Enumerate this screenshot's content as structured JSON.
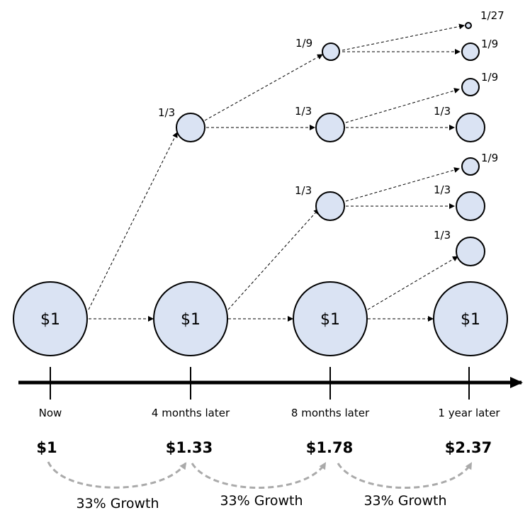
{
  "colors": {
    "circle_fill": "#dae3f3",
    "circle_stroke": "#000000",
    "axis": "#000000",
    "growth_arc": "#aaaaaa"
  },
  "nodes": {
    "now": "$1",
    "month4": "$1",
    "month8": "$1",
    "year1": "$1"
  },
  "fractions": {
    "a": "1/3",
    "b": "1/9",
    "c": "1/3",
    "d": "1/3",
    "e": "1/27",
    "f": "1/9",
    "g": "1/9",
    "h": "1/3",
    "i": "1/9",
    "j": "1/3",
    "k": "1/3"
  },
  "timeline": {
    "labels": [
      "Now",
      "4 months later",
      "8 months later",
      "1 year later"
    ],
    "values": [
      "$1",
      "$1.33",
      "$1.78",
      "$2.37"
    ]
  },
  "growth": [
    "33% Growth",
    "33% Growth",
    "33% Growth"
  ]
}
